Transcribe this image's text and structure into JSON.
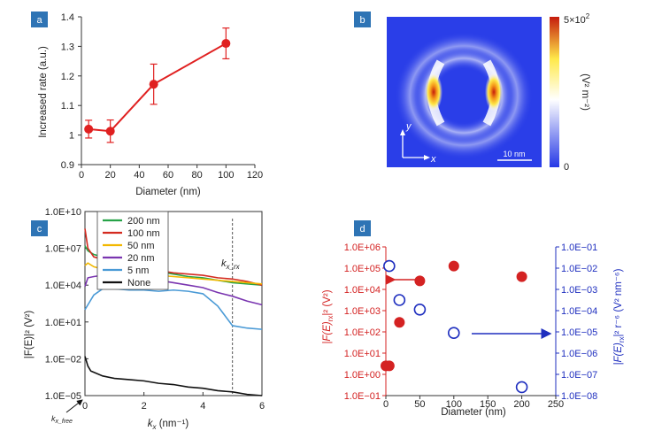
{
  "panels": {
    "a": "a",
    "b": "b",
    "c": "c",
    "d": "d"
  },
  "chart_data": [
    {
      "id": "a",
      "type": "line",
      "x": [
        5,
        20,
        50,
        100
      ],
      "values": [
        1.02,
        1.013,
        1.172,
        1.31
      ],
      "errors": [
        0.03,
        0.038,
        0.068,
        0.052
      ],
      "xlabel": "Diameter (nm)",
      "ylabel": "Increased rate (a.u.)",
      "xlim": [
        0,
        120
      ],
      "ylim": [
        0.9,
        1.4
      ],
      "xticks": [
        "0",
        "20",
        "40",
        "60",
        "80",
        "100",
        "120"
      ],
      "yticks": [
        "0.9",
        "1",
        "1.1",
        "1.2",
        "1.3",
        "1.4"
      ],
      "color": "#e02020"
    },
    {
      "id": "b",
      "type": "heatmap",
      "colorbar_max": "5×10",
      "colorbar_exp": "2",
      "colorbar_min": "0",
      "colorbar_unit": "(V² m⁻²)",
      "axis_y": "y",
      "axis_x": "x",
      "scale_bar": "10 nm",
      "colors": [
        "#2538e6",
        "#ffffff",
        "#ffe94a",
        "#c51b0c"
      ]
    },
    {
      "id": "c",
      "type": "line",
      "xlabel": "k",
      "xlabel_sub": "x",
      "xlabel_unit": " (nm⁻¹)",
      "ylabel": "|F(E)|² (V²)",
      "xlim": [
        0,
        6
      ],
      "ylim_log10": [
        -5,
        10
      ],
      "xticks": [
        "0",
        "2",
        "4",
        "6"
      ],
      "yticks": [
        "1.0E−05",
        "1.0E−02",
        "1.0E+01",
        "1.0E+04",
        "1.0E+07",
        "1.0E+10"
      ],
      "annotation_kx_rx": "k",
      "annotation_kx_rx_sub": "x_rx",
      "annotation_kx_rx_value": 5.0,
      "annotation_kx_free": "k",
      "annotation_kx_free_sub": "x_free",
      "series": [
        {
          "name": "200 nm",
          "color": "#27a348",
          "x": [
            0,
            0.1,
            0.3,
            0.6,
            1,
            1.5,
            2,
            2.5,
            3,
            3.5,
            4,
            4.5,
            5,
            5.5,
            6
          ],
          "log10": [
            7.2,
            6.8,
            6.5,
            6.3,
            6.2,
            5.9,
            5.6,
            5.1,
            4.9,
            4.7,
            4.6,
            4.4,
            4.2,
            4.1,
            4.0
          ]
        },
        {
          "name": "100 nm",
          "color": "#d42b20",
          "x": [
            0,
            0.1,
            0.3,
            0.6,
            1,
            1.5,
            2,
            2.5,
            3,
            3.5,
            4,
            4.5,
            5,
            5.5,
            6
          ],
          "log10": [
            8.6,
            7.0,
            6.3,
            6.1,
            5.9,
            5.6,
            5.5,
            5.2,
            5.0,
            4.9,
            4.8,
            4.6,
            4.5,
            4.3,
            4.0
          ]
        },
        {
          "name": "50 nm",
          "color": "#f2b800",
          "x": [
            0,
            0.1,
            0.3,
            0.6,
            1,
            1.5,
            2,
            2.5,
            3,
            3.5,
            4,
            4.5,
            5,
            5.5,
            6
          ],
          "log10": [
            5.6,
            5.8,
            5.5,
            5.3,
            5.2,
            5.0,
            4.9,
            4.8,
            4.7,
            4.6,
            4.5,
            4.4,
            4.3,
            4.2,
            4.1
          ]
        },
        {
          "name": "20 nm",
          "color": "#7a35b0",
          "x": [
            0,
            0.1,
            0.3,
            0.6,
            1,
            1.5,
            2,
            2.5,
            3,
            3.5,
            4,
            4.5,
            5,
            5.5,
            6
          ],
          "log10": [
            3.9,
            4.6,
            4.7,
            4.8,
            4.7,
            4.6,
            4.5,
            4.4,
            4.2,
            4.0,
            3.8,
            3.4,
            3.1,
            2.7,
            2.4
          ]
        },
        {
          "name": "5 nm",
          "color": "#4a9ad6",
          "x": [
            0,
            0.1,
            0.3,
            0.6,
            1,
            1.5,
            2,
            2.5,
            3,
            3.5,
            4,
            4.5,
            5,
            5.5,
            6
          ],
          "log10": [
            2.0,
            2.4,
            3.2,
            3.7,
            3.7,
            3.6,
            3.6,
            3.5,
            3.6,
            3.5,
            3.3,
            2.3,
            0.7,
            0.5,
            0.4
          ]
        },
        {
          "name": "None",
          "color": "#111111",
          "x": [
            0,
            0.1,
            0.2,
            0.3,
            0.6,
            1,
            1.5,
            2,
            2.5,
            3,
            3.5,
            4,
            4.5,
            5,
            5.5,
            6
          ],
          "log10": [
            -1.8,
            -2.6,
            -3.0,
            -3.1,
            -3.4,
            -3.6,
            -3.7,
            -3.8,
            -4.0,
            -4.1,
            -4.3,
            -4.4,
            -4.6,
            -4.7,
            -4.9,
            -5.0
          ]
        }
      ]
    },
    {
      "id": "d",
      "type": "scatter",
      "xlabel": "Diameter (nm)",
      "ylabel_left": "|F(E)",
      "ylabel_left_sub": "rx",
      "ylabel_left_tail": "|² (V²)",
      "ylabel_right": "|F(E)",
      "ylabel_right_sub": "rx",
      "ylabel_right_tail": "|² r⁻⁶ (V² nm⁻⁶)",
      "xlim": [
        0,
        250
      ],
      "xticks": [
        "0",
        "50",
        "100",
        "150",
        "200",
        "250"
      ],
      "ylim_left_log10": [
        -1,
        6
      ],
      "ylim_right_log10": [
        -8,
        -1
      ],
      "yticks_left": [
        "1.0E−01",
        "1.0E+00",
        "1.0E+01",
        "1.0E+02",
        "1.0E+03",
        "1.0E+04",
        "1.0E+05",
        "1.0E+06"
      ],
      "yticks_right": [
        "1.0E−08",
        "1.0E−07",
        "1.0E−06",
        "1.0E−05",
        "1.0E−04",
        "1.0E−03",
        "1.0E−02",
        "1.0E−01"
      ],
      "left_color": "#d42222",
      "right_color": "#1f2fbf",
      "series": [
        {
          "name": "",
          "axis": "left",
          "filled": true,
          "x": [
            0,
            5,
            20,
            50,
            100,
            200
          ],
          "log10": [
            0.4,
            0.4,
            2.45,
            4.4,
            5.1,
            4.6
          ]
        },
        {
          "name": "",
          "axis": "right",
          "filled": false,
          "x": [
            5,
            20,
            50,
            100,
            200
          ],
          "log10": [
            -1.9,
            -3.5,
            -3.95,
            -5.05,
            -7.6
          ]
        }
      ]
    }
  ]
}
